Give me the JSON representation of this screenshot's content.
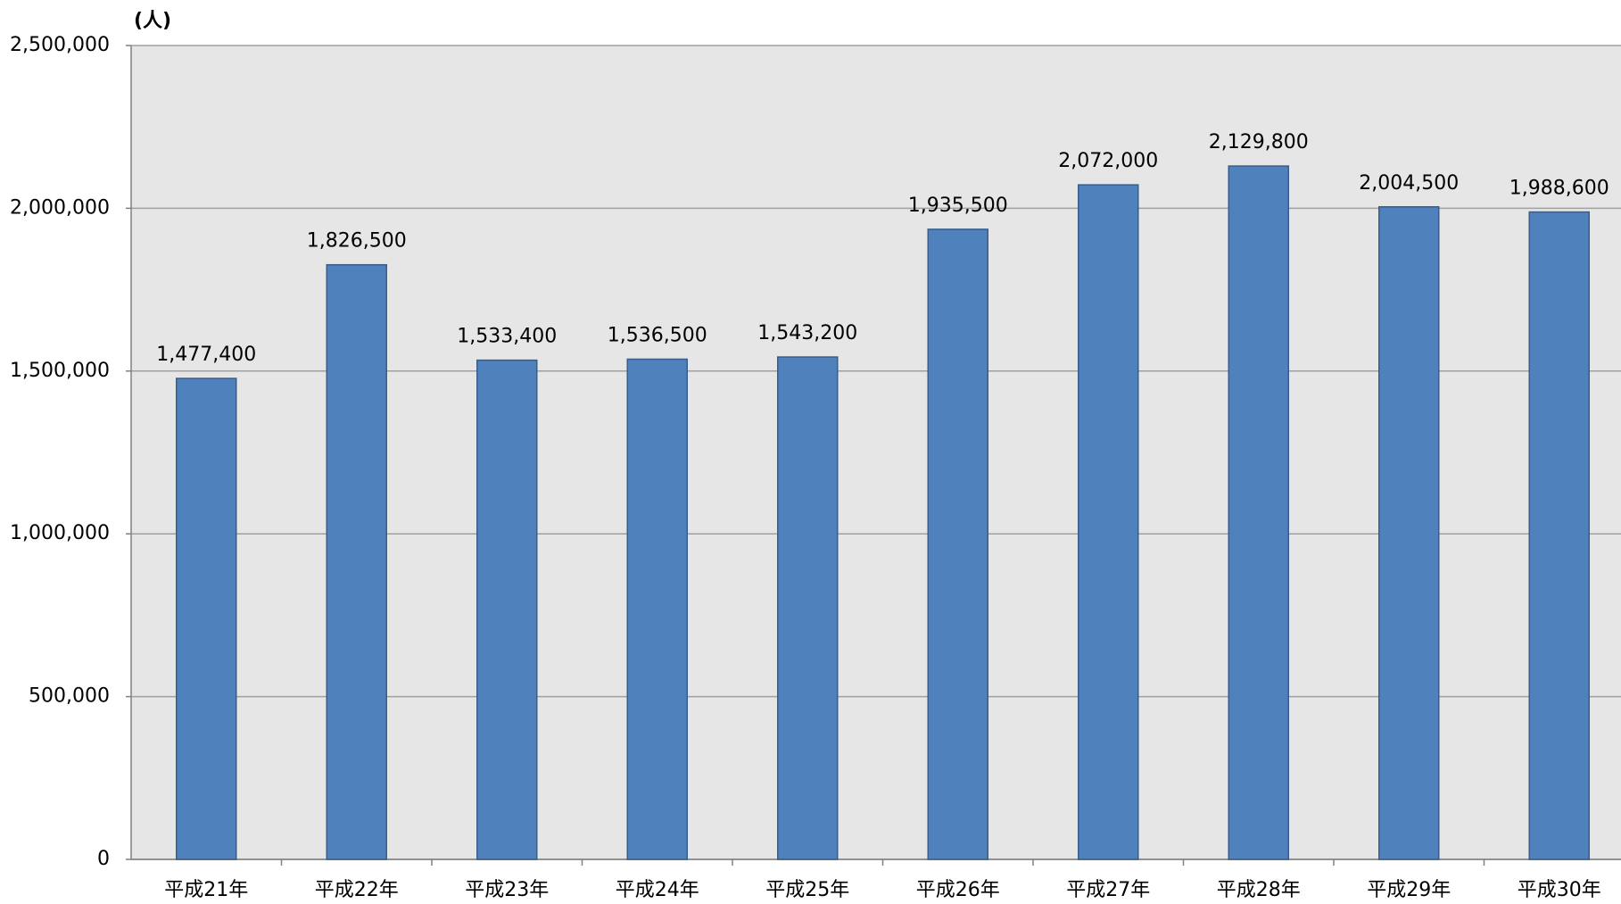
{
  "chart_data": {
    "type": "bar",
    "y_label": "(人)",
    "categories": [
      "平成21年",
      "平成22年",
      "平成23年",
      "平成24年",
      "平成25年",
      "平成26年",
      "平成27年",
      "平成28年",
      "平成29年",
      "平成30年"
    ],
    "values": [
      1477400,
      1826500,
      1533400,
      1536500,
      1543200,
      1935500,
      2072000,
      2129800,
      2004500,
      1988600
    ],
    "value_labels": [
      "1,477,400",
      "1,826,500",
      "1,533,400",
      "1,536,500",
      "1,543,200",
      "1,935,500",
      "2,072,000",
      "2,129,800",
      "2,004,500",
      "1,988,600"
    ],
    "color": "#4f81bd",
    "ylim": [
      0,
      2500000
    ],
    "yticks": [
      0,
      {
        "value": 500000,
        "label": "500,000"
      },
      {
        "value": 1000000,
        "label": "1,000,000"
      },
      {
        "value": 1500000,
        "label": "1,500,000"
      },
      {
        "value": 2000000,
        "label": "2,000,000"
      },
      {
        "value": 2500000,
        "label": "2,500,000"
      }
    ],
    "grid": true
  }
}
